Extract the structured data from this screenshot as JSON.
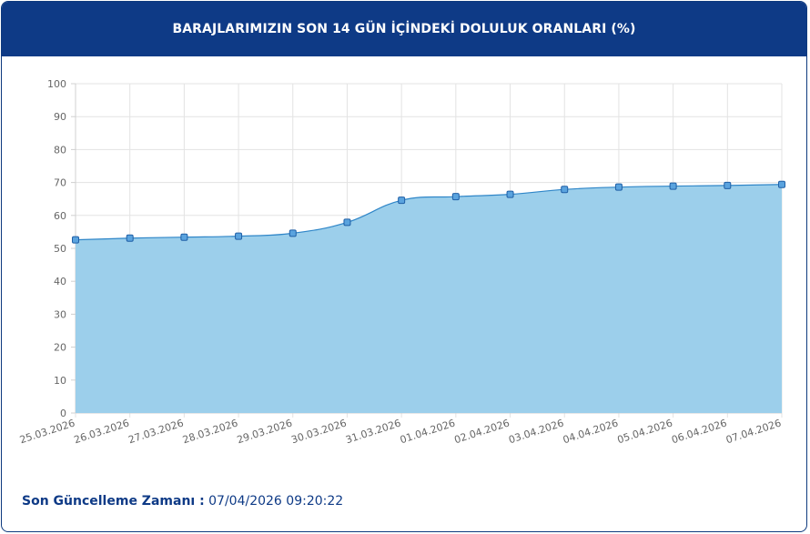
{
  "header": {
    "title": "BARAJLARIMIZIN SON 14 GÜN İÇİNDEKİ DOLULUK ORANLARI (%)"
  },
  "chart_data": {
    "type": "area",
    "title": "BARAJLARIMIZIN SON 14 GÜN İÇİNDEKİ DOLULUK ORANLARI (%)",
    "xlabel": "",
    "ylabel": "",
    "ylim": [
      0,
      100
    ],
    "yticks": [
      0,
      10,
      20,
      30,
      40,
      50,
      60,
      70,
      80,
      90,
      100
    ],
    "grid": true,
    "categories": [
      "25.03.2026",
      "26.03.2026",
      "27.03.2026",
      "28.03.2026",
      "29.03.2026",
      "30.03.2026",
      "31.03.2026",
      "01.04.2026",
      "02.04.2026",
      "03.04.2026",
      "04.04.2026",
      "05.04.2026",
      "06.04.2026",
      "07.04.2026"
    ],
    "series": [
      {
        "values": [
          52.6,
          53.1,
          53.4,
          53.7,
          54.6,
          57.9,
          64.6,
          65.7,
          66.4,
          67.9,
          68.6,
          68.9,
          69.1,
          69.4
        ]
      }
    ],
    "colors": {
      "fill": "#9ccfeb",
      "line": "#2f86c8",
      "marker_fill": "#5aa3de",
      "marker_stroke": "#1f5fa6"
    }
  },
  "footer": {
    "label": "Son Güncelleme Zamanı :",
    "value": "07/04/2026 09:20:22"
  }
}
